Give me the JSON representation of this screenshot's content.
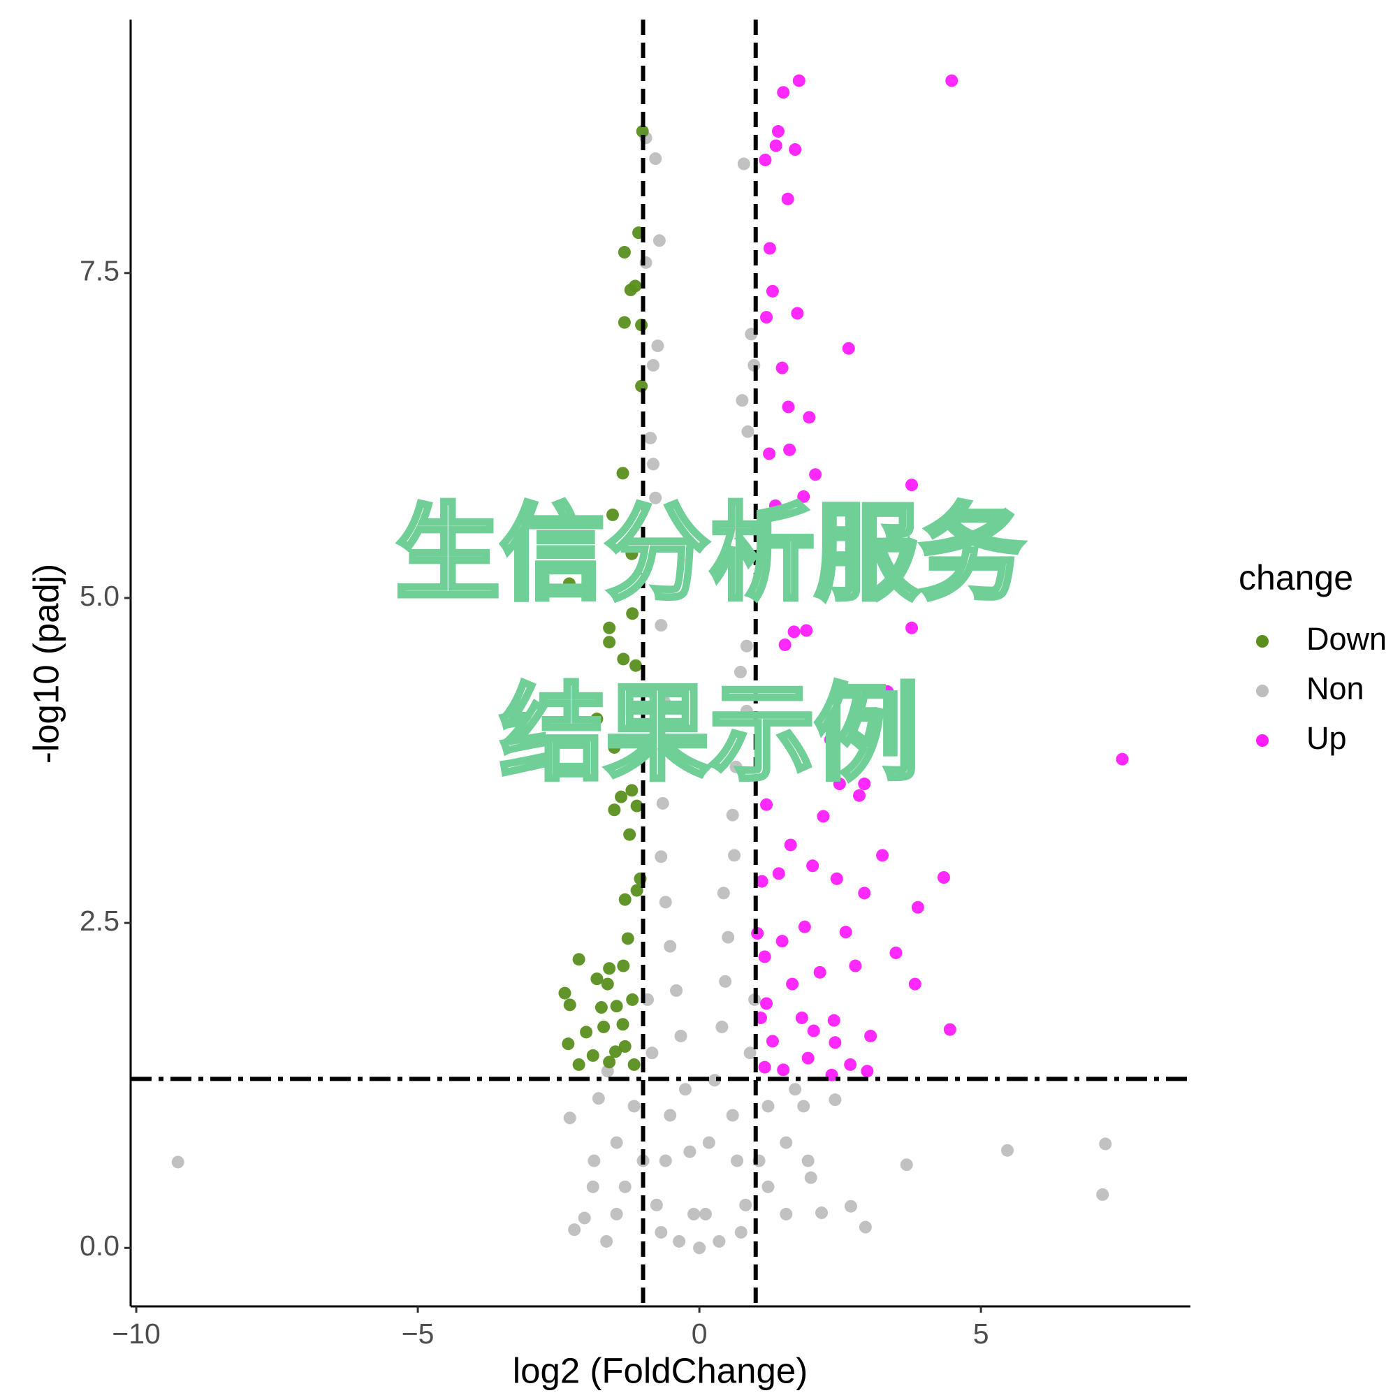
{
  "chart_data": {
    "type": "scatter",
    "xlabel": "log2 (FoldChange)",
    "ylabel": "-log10 (padj)",
    "legend_title": "change",
    "legend": "right",
    "watermark": [
      "生信分析服务",
      "结果示例"
    ],
    "xlim": [
      -10.1,
      8.72
    ],
    "ylim": [
      -0.45,
      9.45
    ],
    "xticks": [
      {
        "value": -10,
        "label": "−10"
      },
      {
        "value": -5,
        "label": "−5"
      },
      0,
      5
    ],
    "yticks": [
      {
        "value": 0,
        "label": "0.0"
      },
      2.5,
      {
        "value": 5,
        "label": "5.0"
      },
      7.5
    ],
    "grid": false,
    "thresholds": {
      "x": [
        -1,
        1
      ],
      "y": 1.3
    },
    "series": [
      {
        "name": "Down",
        "color": "#5a8f1d",
        "x": [
          -1.01,
          -1.08,
          -1.33,
          -1.14,
          -1.22,
          -1.33,
          -1.03,
          -1.03,
          -1.36,
          -1.54,
          -1.2,
          -2.31,
          -1.19,
          -1.6,
          -1.6,
          -1.35,
          -1.13,
          -1.82,
          -1.51,
          -1.2,
          -1.39,
          -1.51,
          -1.11,
          -1.24,
          -1.05,
          -1.32,
          -1.11,
          -1.27,
          -2.14,
          -1.6,
          -1.82,
          -1.35,
          -2.39,
          -1.63,
          -2.3,
          -1.74,
          -1.47,
          -1.19,
          -2.01,
          -1.7,
          -1.36,
          -2.33,
          -1.89,
          -2.14,
          -1.6,
          -1.32,
          -1.16,
          -1.49
        ],
        "values": [
          8.59,
          7.81,
          7.66,
          7.4,
          7.37,
          7.12,
          7.1,
          6.63,
          5.96,
          5.64,
          5.34,
          5.11,
          4.88,
          4.77,
          4.66,
          4.53,
          4.48,
          4.07,
          3.85,
          3.52,
          3.47,
          3.37,
          3.4,
          3.18,
          2.84,
          2.68,
          2.75,
          2.38,
          2.22,
          2.15,
          2.07,
          2.17,
          1.96,
          2.03,
          1.87,
          1.85,
          1.86,
          1.91,
          1.66,
          1.7,
          1.72,
          1.57,
          1.48,
          1.41,
          1.43,
          1.55,
          1.41,
          1.51
        ]
      },
      {
        "name": "Non",
        "color": "#bebebe",
        "x": [
          -9.26,
          5.47,
          7.21,
          7.16,
          3.68,
          2.95,
          2.69,
          2.17,
          -2.22,
          -2.04,
          -1.65,
          -1.87,
          -2.3,
          0.79,
          -0.78,
          -0.95,
          -0.71,
          -0.95,
          -0.74,
          -0.82,
          0.92,
          0.97,
          0.76,
          0.86,
          -0.87,
          -0.82,
          -0.78,
          0.67,
          -0.68,
          0.84,
          0.73,
          -0.62,
          0.84,
          -0.63,
          0.65,
          -0.65,
          0.59,
          -0.68,
          0.62,
          -0.6,
          0.43,
          -0.52,
          0.51,
          -0.41,
          0.46,
          -0.33,
          0.4,
          -0.25,
          0.27,
          -0.17,
          0.17,
          -0.1,
          0.11,
          0,
          -0.36,
          0.35,
          -0.68,
          0.74,
          -1.32,
          1.22,
          -1.47,
          1.54,
          -1.79,
          1.85,
          2.41,
          1.93,
          -1.16,
          1.22,
          -1,
          1.06,
          -0.76,
          0.82,
          -0.52,
          0.59,
          -0.84,
          0.9,
          -0.92,
          0.98,
          -0.6,
          0.67,
          -1.47,
          1.54,
          -1.89,
          1.98,
          1.7,
          -1.63
        ],
        "values": [
          0.66,
          0.75,
          0.8,
          0.41,
          0.64,
          0.16,
          0.32,
          0.27,
          0.14,
          0.23,
          0.05,
          0.67,
          1,
          8.34,
          8.38,
          8.54,
          7.75,
          7.58,
          6.94,
          6.79,
          7.03,
          6.79,
          6.52,
          6.28,
          6.23,
          6.03,
          5.77,
          5.5,
          4.79,
          4.63,
          4.43,
          4.2,
          4.13,
          3.83,
          3.7,
          3.42,
          3.33,
          3.01,
          3.02,
          2.66,
          2.73,
          2.32,
          2.39,
          1.98,
          2.05,
          1.63,
          1.7,
          1.22,
          1.29,
          0.74,
          0.81,
          0.26,
          0.26,
          0,
          0.05,
          0.05,
          0.12,
          0.12,
          0.47,
          0.47,
          0.81,
          0.81,
          1.15,
          1.09,
          1.14,
          0.67,
          1.09,
          1.09,
          0.67,
          0.67,
          0.33,
          0.33,
          1.02,
          1.02,
          1.5,
          1.5,
          1.91,
          1.91,
          0.67,
          0.67,
          0.26,
          0.26,
          0.47,
          0.54,
          1.22,
          1.36
        ]
      },
      {
        "name": "Up",
        "color": "#ff1cff",
        "x": [
          4.48,
          1.77,
          1.49,
          1.4,
          1.36,
          1.7,
          1.17,
          1.57,
          1.25,
          1.3,
          1.74,
          1.19,
          2.65,
          1.47,
          1.58,
          1.95,
          1.6,
          1.24,
          2.06,
          3.77,
          1.85,
          1.35,
          3.77,
          1.9,
          1.68,
          1.52,
          7.51,
          3.34,
          2.33,
          2.49,
          2.93,
          2.84,
          2.2,
          1.19,
          1.62,
          3.25,
          2.01,
          4.34,
          2.44,
          2.93,
          3.88,
          1.87,
          2.6,
          1.47,
          3.49,
          2.77,
          2.14,
          3.83,
          1.65,
          1.19,
          2.39,
          1.82,
          4.45,
          3.04,
          2.03,
          1.3,
          2.41,
          1.93,
          1.49,
          2.98,
          2.68,
          2.35,
          1.16,
          1.09,
          1.16,
          1.03,
          1.41,
          1.11
        ],
        "values": [
          8.98,
          8.98,
          8.89,
          8.59,
          8.48,
          8.45,
          8.37,
          8.07,
          7.69,
          7.36,
          7.19,
          7.16,
          6.92,
          6.77,
          6.47,
          6.39,
          6.14,
          6.11,
          5.95,
          5.87,
          5.78,
          5.71,
          4.77,
          4.75,
          4.74,
          4.64,
          3.76,
          4.28,
          3.91,
          3.57,
          3.57,
          3.48,
          3.32,
          3.41,
          3.1,
          3.02,
          2.94,
          2.85,
          2.84,
          2.73,
          2.62,
          2.47,
          2.43,
          2.36,
          2.27,
          2.17,
          2.12,
          2.03,
          2.03,
          1.88,
          1.75,
          1.77,
          1.68,
          1.63,
          1.67,
          1.59,
          1.58,
          1.46,
          1.37,
          1.36,
          1.41,
          1.33,
          1.39,
          1.77,
          2.24,
          2.42,
          2.88,
          2.82
        ]
      }
    ]
  }
}
